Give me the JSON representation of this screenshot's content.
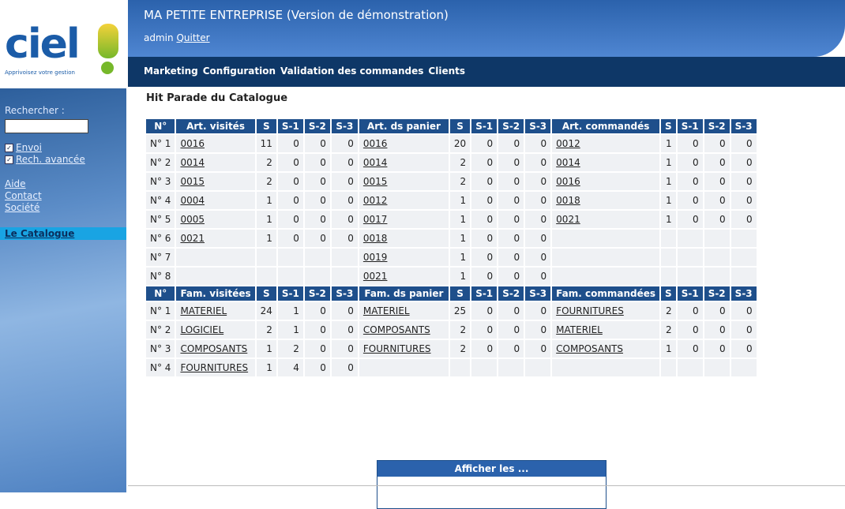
{
  "logo": {
    "brand": "ciel",
    "tagline": "Apprivoisez votre gestion"
  },
  "header": {
    "title": "MA PETITE ENTREPRISE (Version de démonstration)",
    "user": "admin",
    "logout": "Quitter"
  },
  "nav": [
    "Marketing",
    "Configuration",
    "Validation des commandes",
    "Clients"
  ],
  "sidebar": {
    "search_label": "Rechercher :",
    "options": [
      "Envoi",
      "Rech. avancée"
    ],
    "links": [
      "Aide",
      "Contact",
      "Société"
    ],
    "active": "Le Catalogue"
  },
  "page_title": "Hit Parade du Catalogue",
  "tables": [
    {
      "header": [
        "N°",
        "Art. visités",
        "S",
        "S-1",
        "S-2",
        "S-3",
        "Art. ds panier",
        "S",
        "S-1",
        "S-2",
        "S-3",
        "Art. commandés",
        "S",
        "S-1",
        "S-2",
        "S-3"
      ],
      "rows": [
        [
          "N° 1",
          "0016",
          11,
          0,
          0,
          0,
          "0016",
          20,
          0,
          0,
          0,
          "0012",
          1,
          0,
          0,
          0
        ],
        [
          "N° 2",
          "0014",
          2,
          0,
          0,
          0,
          "0014",
          2,
          0,
          0,
          0,
          "0014",
          1,
          0,
          0,
          0
        ],
        [
          "N° 3",
          "0015",
          2,
          0,
          0,
          0,
          "0015",
          2,
          0,
          0,
          0,
          "0016",
          1,
          0,
          0,
          0
        ],
        [
          "N° 4",
          "0004",
          1,
          0,
          0,
          0,
          "0012",
          1,
          0,
          0,
          0,
          "0018",
          1,
          0,
          0,
          0
        ],
        [
          "N° 5",
          "0005",
          1,
          0,
          0,
          0,
          "0017",
          1,
          0,
          0,
          0,
          "0021",
          1,
          0,
          0,
          0
        ],
        [
          "N° 6",
          "0021",
          1,
          0,
          0,
          0,
          "0018",
          1,
          0,
          0,
          0,
          null,
          null,
          null,
          null,
          null
        ],
        [
          "N° 7",
          null,
          null,
          null,
          null,
          null,
          "0019",
          1,
          0,
          0,
          0,
          null,
          null,
          null,
          null,
          null
        ],
        [
          "N° 8",
          null,
          null,
          null,
          null,
          null,
          "0021",
          1,
          0,
          0,
          0,
          null,
          null,
          null,
          null,
          null
        ]
      ]
    },
    {
      "header": [
        "N°",
        "Fam. visitées",
        "S",
        "S-1",
        "S-2",
        "S-3",
        "Fam. ds panier",
        "S",
        "S-1",
        "S-2",
        "S-3",
        "Fam. commandées",
        "S",
        "S-1",
        "S-2",
        "S-3"
      ],
      "rows": [
        [
          "N° 1",
          "MATERIEL",
          24,
          1,
          0,
          0,
          "MATERIEL",
          25,
          0,
          0,
          0,
          "FOURNITURES",
          2,
          0,
          0,
          0
        ],
        [
          "N° 2",
          "LOGICIEL",
          2,
          1,
          0,
          0,
          "COMPOSANTS",
          2,
          0,
          0,
          0,
          "MATERIEL",
          2,
          0,
          0,
          0
        ],
        [
          "N° 3",
          "COMPOSANTS",
          1,
          2,
          0,
          0,
          "FOURNITURES",
          2,
          0,
          0,
          0,
          "COMPOSANTS",
          1,
          0,
          0,
          0
        ],
        [
          "N° 4",
          "FOURNITURES",
          1,
          4,
          0,
          0,
          null,
          null,
          null,
          null,
          null,
          null,
          null,
          null,
          null,
          null
        ]
      ]
    }
  ],
  "display_box": {
    "title": "Afficher les ..."
  }
}
